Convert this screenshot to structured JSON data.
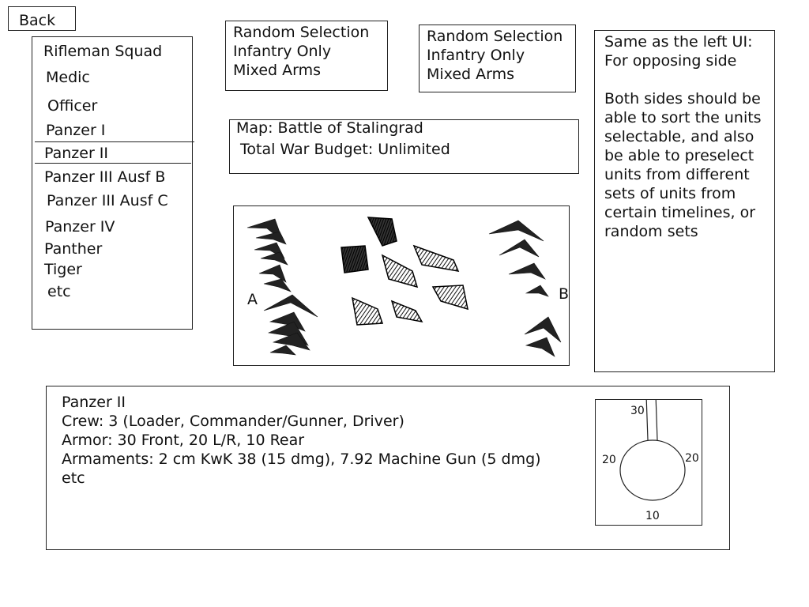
{
  "nav": {
    "back_label": "Back"
  },
  "unit_list": {
    "items": [
      "Rifleman Squad",
      "Medic",
      "Officer",
      "Panzer I",
      "Panzer II",
      "Panzer III Ausf B",
      "Panzer III Ausf C",
      "Panzer IV",
      "Panther",
      "Tiger",
      "etc"
    ],
    "selected": "Panzer II"
  },
  "selection_left": {
    "options": [
      "Random Selection",
      "Infantry Only",
      "Mixed Arms"
    ]
  },
  "selection_right": {
    "options": [
      "Random Selection",
      "Infantry Only",
      "Mixed Arms"
    ]
  },
  "map_info": {
    "map_line": "Map: Battle of Stalingrad",
    "budget_line": "Total War Budget: Unlimited"
  },
  "notes": {
    "line1": "Same as the left UI:\nFor opposing side",
    "line2": "Both sides should be\nable to sort the units\nselectable, and also\nbe able to preselect\nunits from different\nsets of units from\ncertain timelines, or\nrandom sets"
  },
  "battle_preview": {
    "side_a_label": "A",
    "side_b_label": "B"
  },
  "unit_detail": {
    "name": "Panzer II",
    "crew": "Crew: 3 (Loader, Commander/Gunner, Driver)",
    "armor": "Armor: 30 Front, 20 L/R, 10 Rear",
    "armaments": "Armaments: 2 cm KwK 38 (15 dmg), 7.92 Machine Gun (5 dmg)",
    "more": "etc"
  },
  "armor_diagram": {
    "front": "30",
    "left": "20",
    "right": "20",
    "rear": "10"
  }
}
